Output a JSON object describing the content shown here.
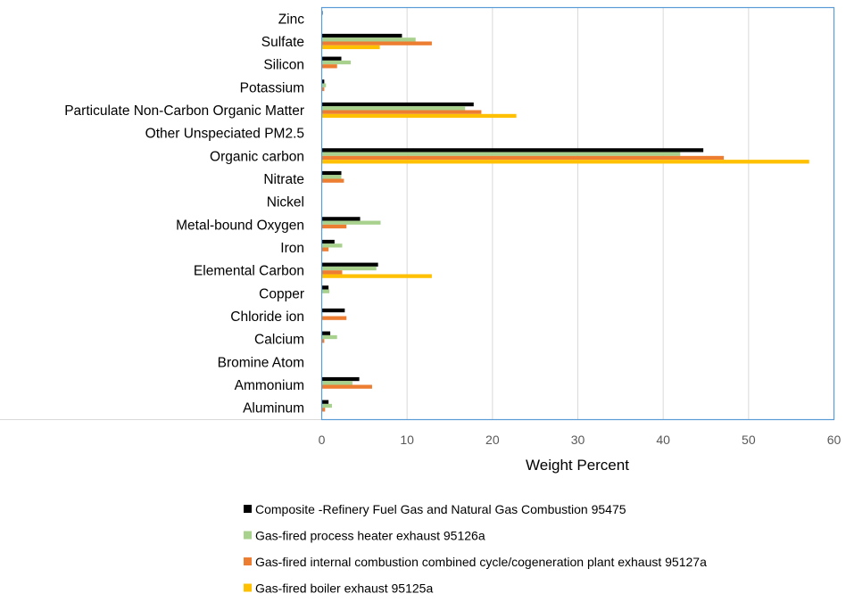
{
  "chart_data": {
    "type": "bar",
    "orientation": "horizontal",
    "categories": [
      "Zinc",
      "Sulfate",
      "Silicon",
      "Potassium",
      "Particulate Non-Carbon Organic Matter",
      "Other Unspeciated PM2.5",
      "Organic carbon",
      "Nitrate",
      "Nickel",
      "Metal-bound Oxygen",
      "Iron",
      "Elemental Carbon",
      "Copper",
      "Chloride ion",
      "Calcium",
      "Bromine Atom",
      "Ammonium",
      "Aluminum"
    ],
    "series": [
      {
        "name": "Composite -Refinery Fuel Gas and Natural Gas Combustion 95475",
        "color": "#000000",
        "values": [
          0.1,
          9.4,
          2.3,
          0.3,
          17.8,
          0,
          44.7,
          2.3,
          0,
          4.5,
          1.5,
          6.6,
          0.8,
          2.7,
          1.0,
          0,
          4.4,
          0.8
        ]
      },
      {
        "name": "Gas-fired process heater exhaust 95126a",
        "color": "#a9d18e",
        "values": [
          0,
          11.0,
          3.4,
          0.5,
          16.8,
          0,
          42.0,
          2.3,
          0,
          6.9,
          2.4,
          6.4,
          0.9,
          0.1,
          1.8,
          0,
          3.6,
          1.2
        ]
      },
      {
        "name": "Gas-fired internal combustion combined cycle/cogeneration plant exhaust 95127a",
        "color": "#ed7d31",
        "values": [
          0,
          12.9,
          1.8,
          0.3,
          18.7,
          0,
          47.1,
          2.6,
          0,
          2.9,
          0.8,
          2.4,
          0,
          2.9,
          0.3,
          0,
          5.9,
          0.4
        ]
      },
      {
        "name": "Gas-fired boiler exhaust 95125a",
        "color": "#ffc000",
        "values": [
          0,
          6.8,
          0,
          0,
          22.8,
          0,
          57.1,
          0,
          0,
          0,
          0,
          12.9,
          0,
          0,
          0,
          0,
          0,
          0
        ]
      }
    ],
    "xlabel": "Weight Percent",
    "ylabel": "",
    "xlim": [
      0,
      60
    ],
    "xticks": [
      "0",
      "10",
      "20",
      "30",
      "40",
      "50",
      "60"
    ],
    "grid": true,
    "legend_position": "bottom"
  }
}
